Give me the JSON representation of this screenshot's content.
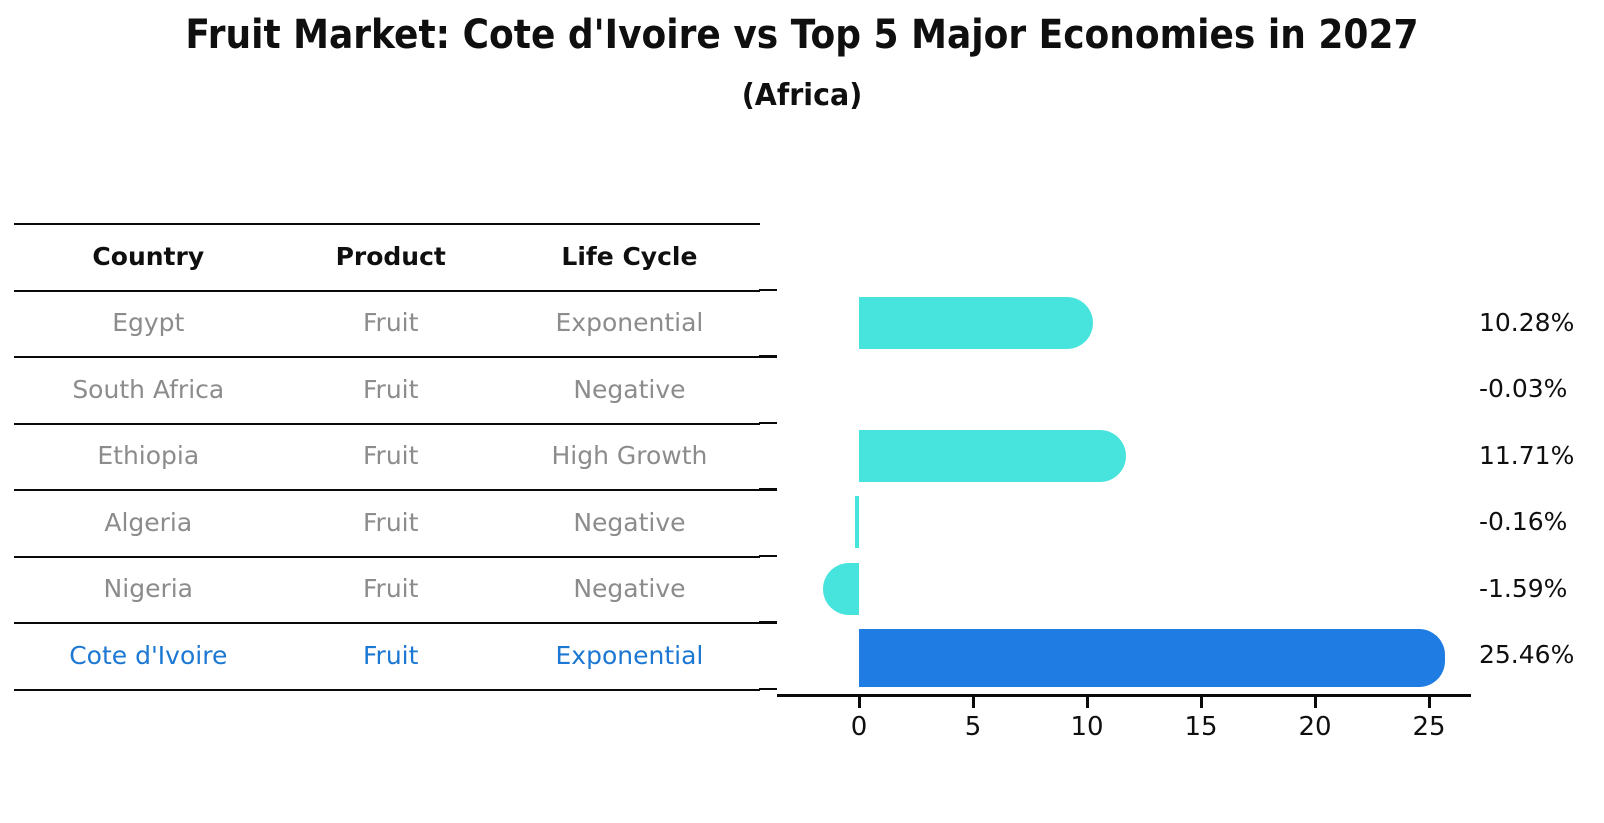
{
  "title": "Fruit Market: Cote d'Ivoire vs Top 5 Major Economies in 2027",
  "subtitle": "(Africa)",
  "table": {
    "headers": [
      "Country",
      "Product",
      "Life Cycle"
    ],
    "rows": [
      {
        "country": "Egypt",
        "product": "Fruit",
        "life_cycle": "Exponential",
        "highlight": false
      },
      {
        "country": "South Africa",
        "product": "Fruit",
        "life_cycle": "Negative",
        "highlight": false
      },
      {
        "country": "Ethiopia",
        "product": "Fruit",
        "life_cycle": "High Growth",
        "highlight": false
      },
      {
        "country": "Algeria",
        "product": "Fruit",
        "life_cycle": "Negative",
        "highlight": false
      },
      {
        "country": "Nigeria",
        "product": "Fruit",
        "life_cycle": "Negative",
        "highlight": false
      },
      {
        "country": "Cote d'Ivoire",
        "product": "Fruit",
        "life_cycle": "Exponential",
        "highlight": true
      }
    ]
  },
  "chart_data": {
    "type": "bar",
    "orientation": "horizontal",
    "title": "Fruit Market: Cote d'Ivoire vs Top 5 Major Economies in 2027",
    "subtitle": "(Africa)",
    "categories": [
      "Egypt",
      "South Africa",
      "Ethiopia",
      "Algeria",
      "Nigeria",
      "Cote d'Ivoire"
    ],
    "values": [
      10.28,
      -0.03,
      11.71,
      -0.16,
      -1.59,
      25.46
    ],
    "value_labels": [
      "10.28%",
      "-0.03%",
      "11.71%",
      "-0.16%",
      "-1.59%",
      "25.46%"
    ],
    "x_ticks": [
      "0",
      "5",
      "10",
      "15",
      "20",
      "25"
    ],
    "xlim": [
      -3.5,
      26.9
    ],
    "grid": false,
    "legend": false,
    "highlight_index": 5,
    "colors": {
      "bar": "#47e4de",
      "highlight_bar": "#1e7ce2",
      "highlight_text": "#1c78d2",
      "row_text": "#8c8c8c",
      "heading_text": "#0f0f0f",
      "axis": "#0a0a0a"
    }
  }
}
